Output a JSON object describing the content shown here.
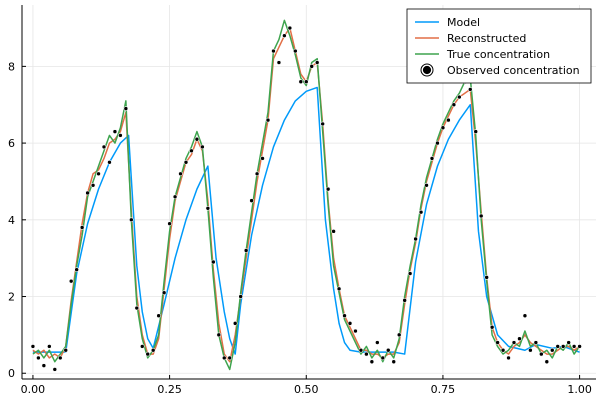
{
  "chart_data": {
    "type": "line",
    "title": "",
    "xlabel": "",
    "ylabel": "",
    "xlim": [
      -0.02,
      1.03
    ],
    "ylim": [
      -0.15,
      9.6
    ],
    "xticks": [
      0.0,
      0.25,
      0.5,
      0.75,
      1.0
    ],
    "xtick_labels": [
      "0.00",
      "0.25",
      "0.50",
      "0.75",
      "1.00"
    ],
    "yticks": [
      0,
      2,
      4,
      6,
      8
    ],
    "ytick_labels": [
      "0",
      "2",
      "4",
      "6",
      "8"
    ],
    "grid": true,
    "legend_position": "top-right",
    "series": [
      {
        "name": "Model",
        "kind": "line",
        "color": "#009AFA",
        "x": [
          0.0,
          0.02,
          0.04,
          0.06,
          0.08,
          0.1,
          0.12,
          0.14,
          0.16,
          0.175,
          0.19,
          0.2,
          0.21,
          0.22,
          0.24,
          0.26,
          0.28,
          0.3,
          0.32,
          0.335,
          0.35,
          0.36,
          0.37,
          0.38,
          0.4,
          0.42,
          0.44,
          0.46,
          0.48,
          0.5,
          0.52,
          0.535,
          0.55,
          0.56,
          0.57,
          0.58,
          0.6,
          0.62,
          0.64,
          0.66,
          0.68,
          0.7,
          0.72,
          0.74,
          0.76,
          0.78,
          0.8,
          0.815,
          0.83,
          0.85,
          0.87,
          0.9,
          0.92,
          0.95,
          0.97,
          1.0
        ],
        "y": [
          0.55,
          0.55,
          0.55,
          0.55,
          2.6,
          3.9,
          4.8,
          5.5,
          6.0,
          6.2,
          2.8,
          1.6,
          0.9,
          0.65,
          1.8,
          3.0,
          4.0,
          4.8,
          5.4,
          3.0,
          1.6,
          0.9,
          0.5,
          1.8,
          3.6,
          4.9,
          5.9,
          6.6,
          7.1,
          7.35,
          7.45,
          4.0,
          2.2,
          1.3,
          0.8,
          0.6,
          0.55,
          0.55,
          0.55,
          0.55,
          0.5,
          2.9,
          4.4,
          5.4,
          6.1,
          6.6,
          7.0,
          3.7,
          2.0,
          1.0,
          0.7,
          0.6,
          0.75,
          0.65,
          0.7,
          0.55
        ]
      },
      {
        "name": "Reconstructed",
        "kind": "line",
        "color": "#E26F46",
        "x": [
          0.0,
          0.01,
          0.02,
          0.03,
          0.04,
          0.05,
          0.06,
          0.07,
          0.08,
          0.09,
          0.1,
          0.11,
          0.12,
          0.13,
          0.14,
          0.15,
          0.16,
          0.17,
          0.18,
          0.19,
          0.2,
          0.21,
          0.22,
          0.23,
          0.24,
          0.25,
          0.26,
          0.27,
          0.28,
          0.29,
          0.3,
          0.31,
          0.32,
          0.33,
          0.34,
          0.35,
          0.36,
          0.37,
          0.38,
          0.39,
          0.4,
          0.41,
          0.42,
          0.43,
          0.44,
          0.45,
          0.46,
          0.47,
          0.48,
          0.49,
          0.5,
          0.51,
          0.52,
          0.53,
          0.54,
          0.55,
          0.56,
          0.57,
          0.58,
          0.59,
          0.6,
          0.61,
          0.62,
          0.63,
          0.64,
          0.65,
          0.66,
          0.67,
          0.68,
          0.69,
          0.7,
          0.71,
          0.72,
          0.73,
          0.74,
          0.75,
          0.76,
          0.77,
          0.78,
          0.79,
          0.8,
          0.81,
          0.82,
          0.83,
          0.84,
          0.85,
          0.86,
          0.87,
          0.88,
          0.89,
          0.9,
          0.91,
          0.92,
          0.93,
          0.94,
          0.95,
          0.96,
          0.97,
          0.98,
          0.99,
          1.0
        ],
        "y": [
          0.6,
          0.5,
          0.6,
          0.4,
          0.5,
          0.4,
          0.7,
          1.9,
          2.9,
          3.9,
          4.7,
          5.2,
          5.3,
          5.6,
          6.0,
          6.1,
          6.3,
          6.8,
          4.2,
          2.0,
          1.0,
          0.5,
          0.5,
          0.9,
          2.2,
          3.5,
          4.5,
          5.0,
          5.5,
          5.7,
          6.1,
          5.8,
          4.5,
          2.7,
          1.3,
          0.5,
          0.3,
          1.0,
          2.0,
          3.0,
          4.0,
          5.0,
          5.8,
          6.6,
          8.2,
          8.5,
          8.8,
          9.0,
          8.4,
          7.8,
          7.6,
          8.0,
          8.1,
          6.5,
          4.5,
          3.0,
          2.2,
          1.5,
          1.2,
          0.9,
          0.6,
          0.6,
          0.5,
          0.5,
          0.4,
          0.5,
          0.5,
          0.8,
          1.8,
          2.7,
          3.4,
          4.3,
          5.0,
          5.5,
          6.0,
          6.4,
          6.7,
          7.0,
          7.2,
          7.3,
          7.4,
          6.0,
          4.2,
          2.5,
          1.2,
          0.8,
          0.6,
          0.5,
          0.7,
          0.8,
          1.0,
          0.8,
          0.7,
          0.6,
          0.5,
          0.5,
          0.6,
          0.7,
          0.7,
          0.6,
          0.7
        ]
      },
      {
        "name": "True concentration",
        "kind": "line",
        "color": "#3EA44E",
        "x": [
          0.0,
          0.01,
          0.02,
          0.03,
          0.04,
          0.05,
          0.06,
          0.07,
          0.08,
          0.09,
          0.1,
          0.11,
          0.12,
          0.13,
          0.14,
          0.15,
          0.16,
          0.17,
          0.18,
          0.19,
          0.2,
          0.21,
          0.22,
          0.23,
          0.24,
          0.25,
          0.26,
          0.27,
          0.28,
          0.29,
          0.3,
          0.31,
          0.32,
          0.33,
          0.34,
          0.35,
          0.36,
          0.37,
          0.38,
          0.39,
          0.4,
          0.41,
          0.42,
          0.43,
          0.44,
          0.45,
          0.46,
          0.47,
          0.48,
          0.49,
          0.5,
          0.51,
          0.52,
          0.53,
          0.54,
          0.55,
          0.56,
          0.57,
          0.58,
          0.59,
          0.6,
          0.61,
          0.62,
          0.63,
          0.64,
          0.65,
          0.66,
          0.67,
          0.68,
          0.69,
          0.7,
          0.71,
          0.72,
          0.73,
          0.74,
          0.75,
          0.76,
          0.77,
          0.78,
          0.79,
          0.8,
          0.81,
          0.82,
          0.83,
          0.84,
          0.85,
          0.86,
          0.87,
          0.88,
          0.89,
          0.9,
          0.91,
          0.92,
          0.93,
          0.94,
          0.95,
          0.96,
          0.97,
          0.98,
          0.99,
          1.0
        ],
        "y": [
          0.5,
          0.6,
          0.4,
          0.6,
          0.3,
          0.5,
          0.7,
          1.8,
          2.8,
          3.6,
          4.6,
          5.0,
          5.4,
          5.8,
          6.2,
          6.0,
          6.4,
          7.1,
          4.0,
          1.8,
          0.9,
          0.4,
          0.6,
          1.0,
          2.4,
          3.7,
          4.6,
          5.1,
          5.6,
          5.9,
          6.3,
          5.9,
          4.3,
          2.5,
          1.0,
          0.4,
          0.1,
          0.8,
          2.1,
          3.2,
          4.2,
          5.2,
          6.0,
          6.8,
          8.4,
          8.7,
          9.2,
          8.8,
          8.3,
          7.7,
          7.5,
          8.1,
          8.2,
          6.3,
          4.4,
          2.8,
          2.1,
          1.4,
          1.1,
          0.8,
          0.5,
          0.7,
          0.4,
          0.6,
          0.3,
          0.6,
          0.4,
          0.9,
          2.0,
          2.8,
          3.5,
          4.4,
          5.1,
          5.6,
          6.1,
          6.5,
          6.8,
          7.1,
          7.3,
          7.6,
          7.7,
          6.2,
          4.0,
          2.4,
          1.0,
          0.7,
          0.5,
          0.6,
          0.8,
          0.7,
          1.1,
          0.7,
          0.8,
          0.5,
          0.6,
          0.4,
          0.7,
          0.6,
          0.8,
          0.5,
          0.7
        ]
      },
      {
        "name": "Observed concentration",
        "kind": "scatter",
        "color": "#000000",
        "x": [
          0.0,
          0.01,
          0.02,
          0.03,
          0.04,
          0.05,
          0.06,
          0.07,
          0.08,
          0.09,
          0.1,
          0.11,
          0.12,
          0.13,
          0.14,
          0.15,
          0.16,
          0.17,
          0.18,
          0.19,
          0.2,
          0.21,
          0.22,
          0.23,
          0.24,
          0.25,
          0.26,
          0.27,
          0.28,
          0.29,
          0.3,
          0.31,
          0.32,
          0.33,
          0.34,
          0.35,
          0.36,
          0.37,
          0.38,
          0.39,
          0.4,
          0.41,
          0.42,
          0.43,
          0.44,
          0.45,
          0.46,
          0.47,
          0.48,
          0.49,
          0.5,
          0.51,
          0.52,
          0.53,
          0.54,
          0.55,
          0.56,
          0.57,
          0.58,
          0.59,
          0.6,
          0.61,
          0.62,
          0.63,
          0.64,
          0.65,
          0.66,
          0.67,
          0.68,
          0.69,
          0.7,
          0.71,
          0.72,
          0.73,
          0.74,
          0.75,
          0.76,
          0.77,
          0.78,
          0.79,
          0.8,
          0.81,
          0.82,
          0.83,
          0.84,
          0.85,
          0.86,
          0.87,
          0.88,
          0.89,
          0.9,
          0.91,
          0.92,
          0.93,
          0.94,
          0.95,
          0.96,
          0.97,
          0.98,
          0.99,
          1.0
        ],
        "y": [
          0.7,
          0.4,
          0.2,
          0.7,
          0.1,
          0.4,
          0.6,
          2.4,
          2.7,
          3.8,
          4.7,
          4.9,
          5.2,
          5.9,
          5.5,
          6.3,
          6.2,
          6.9,
          4.0,
          1.7,
          0.7,
          0.5,
          0.6,
          1.5,
          2.1,
          3.9,
          4.6,
          5.2,
          5.5,
          5.8,
          6.1,
          5.9,
          4.3,
          2.9,
          1.0,
          0.4,
          0.4,
          1.3,
          2.0,
          3.2,
          4.5,
          5.2,
          5.6,
          6.6,
          8.4,
          8.1,
          8.8,
          9.0,
          8.4,
          7.6,
          7.6,
          8.0,
          8.1,
          6.5,
          4.8,
          3.7,
          2.2,
          1.5,
          1.3,
          1.1,
          0.6,
          0.5,
          0.3,
          0.8,
          0.4,
          0.6,
          0.3,
          1.0,
          1.9,
          2.6,
          3.5,
          4.2,
          4.9,
          5.6,
          6.0,
          6.4,
          6.6,
          7.0,
          7.2,
          7.6,
          7.4,
          6.3,
          4.1,
          2.5,
          1.2,
          0.8,
          0.6,
          0.4,
          0.8,
          0.9,
          1.5,
          0.6,
          0.8,
          0.5,
          0.3,
          0.6,
          0.7,
          0.7,
          0.8,
          0.7,
          0.7
        ]
      }
    ]
  }
}
